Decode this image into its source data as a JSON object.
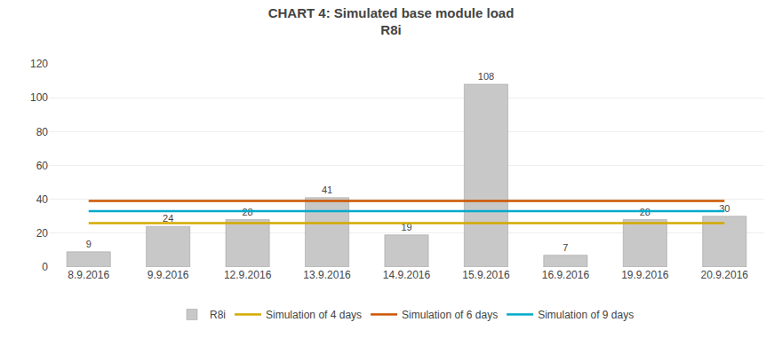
{
  "chart_data": {
    "type": "bar",
    "title": "CHART 4: Simulated base module load",
    "subtitle": "R8i",
    "categories": [
      "8.9.2016",
      "9.9.2016",
      "12.9.2016",
      "13.9.2016",
      "14.9.2016",
      "15.9.2016",
      "16.9.2016",
      "19.9.2016",
      "20.9.2016"
    ],
    "series": [
      {
        "name": "R8i",
        "type": "bar",
        "color": "#c8c8c8",
        "values": [
          9,
          24,
          28,
          41,
          19,
          108,
          7,
          28,
          30
        ]
      },
      {
        "name": "Simulation of 4 days",
        "type": "line",
        "color": "#d4aa00",
        "values": [
          26,
          26,
          26,
          26,
          26,
          26,
          26,
          26,
          26
        ]
      },
      {
        "name": "Simulation of 6 days",
        "type": "line",
        "color": "#cc5500",
        "values": [
          39,
          39,
          39,
          39,
          39,
          39,
          39,
          39,
          39
        ]
      },
      {
        "name": "Simulation of 9 days",
        "type": "line",
        "color": "#00aacc",
        "values": [
          33,
          33,
          33,
          33,
          33,
          33,
          33,
          33,
          33
        ]
      }
    ],
    "ylim": [
      0,
      120
    ],
    "yticks": [
      0,
      20,
      40,
      60,
      80,
      100,
      120
    ],
    "grid": true,
    "legend": "bottom",
    "data_labels": true
  }
}
